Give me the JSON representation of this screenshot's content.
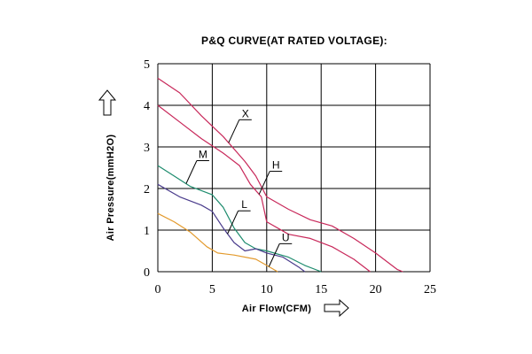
{
  "chart_data": {
    "type": "line",
    "title": "P&Q CURVE(AT RATED VOLTAGE):",
    "xlabel": "Air Flow(CFM)",
    "ylabel": "Air Pressure(mmH2O)",
    "xlim": [
      0,
      25
    ],
    "ylim": [
      0,
      5
    ],
    "x_ticks": [
      "0",
      "5",
      "10",
      "15",
      "20",
      "25"
    ],
    "y_ticks": [
      "0",
      "1",
      "2",
      "3",
      "4",
      "5"
    ],
    "grid": true,
    "series": [
      {
        "name": "X",
        "color": "#c8285a",
        "points": [
          [
            0,
            4.65
          ],
          [
            2,
            4.3
          ],
          [
            4,
            3.75
          ],
          [
            6,
            3.25
          ],
          [
            8,
            2.65
          ],
          [
            9,
            2.3
          ],
          [
            10,
            1.8
          ],
          [
            12,
            1.5
          ],
          [
            14,
            1.25
          ],
          [
            16,
            1.1
          ],
          [
            18,
            0.8
          ],
          [
            20,
            0.45
          ],
          [
            22,
            0.05
          ],
          [
            22.5,
            0
          ]
        ]
      },
      {
        "name": "H",
        "color": "#c8285a",
        "points": [
          [
            0,
            4.0
          ],
          [
            2,
            3.6
          ],
          [
            4,
            3.2
          ],
          [
            6,
            2.85
          ],
          [
            7.5,
            2.55
          ],
          [
            8.5,
            2.1
          ],
          [
            9.5,
            1.8
          ],
          [
            10,
            1.2
          ],
          [
            12,
            0.9
          ],
          [
            14,
            0.8
          ],
          [
            16,
            0.6
          ],
          [
            18,
            0.3
          ],
          [
            19.5,
            0
          ]
        ]
      },
      {
        "name": "M",
        "color": "#1e8c6e",
        "points": [
          [
            0,
            2.55
          ],
          [
            1.5,
            2.3
          ],
          [
            3,
            2.05
          ],
          [
            5,
            1.85
          ],
          [
            6,
            1.55
          ],
          [
            7,
            1.05
          ],
          [
            8,
            0.7
          ],
          [
            9,
            0.55
          ],
          [
            10,
            0.5
          ],
          [
            12,
            0.35
          ],
          [
            13.5,
            0.15
          ],
          [
            15,
            0
          ]
        ]
      },
      {
        "name": "L",
        "color": "#4a3c8c",
        "points": [
          [
            0,
            2.1
          ],
          [
            2,
            1.8
          ],
          [
            4,
            1.6
          ],
          [
            5,
            1.45
          ],
          [
            6,
            1.05
          ],
          [
            7,
            0.7
          ],
          [
            8,
            0.5
          ],
          [
            9,
            0.55
          ],
          [
            10,
            0.45
          ],
          [
            11.5,
            0.35
          ],
          [
            13,
            0.1
          ],
          [
            13.5,
            0
          ]
        ]
      },
      {
        "name": "U",
        "color": "#e39a2c",
        "points": [
          [
            0,
            1.4
          ],
          [
            1.5,
            1.2
          ],
          [
            3,
            0.95
          ],
          [
            4.5,
            0.6
          ],
          [
            5.5,
            0.45
          ],
          [
            7,
            0.4
          ],
          [
            9,
            0.3
          ],
          [
            10,
            0.15
          ],
          [
            11,
            0
          ]
        ]
      }
    ],
    "annotations": [
      {
        "text": "X",
        "series": "X",
        "at_x": 6.5
      },
      {
        "text": "H",
        "series": "H",
        "at_x": 9.3
      },
      {
        "text": "M",
        "series": "M",
        "at_x": 2.6
      },
      {
        "text": "L",
        "series": "L",
        "at_x": 6.4
      },
      {
        "text": "U",
        "series": "U",
        "at_x": 10.2
      }
    ]
  }
}
